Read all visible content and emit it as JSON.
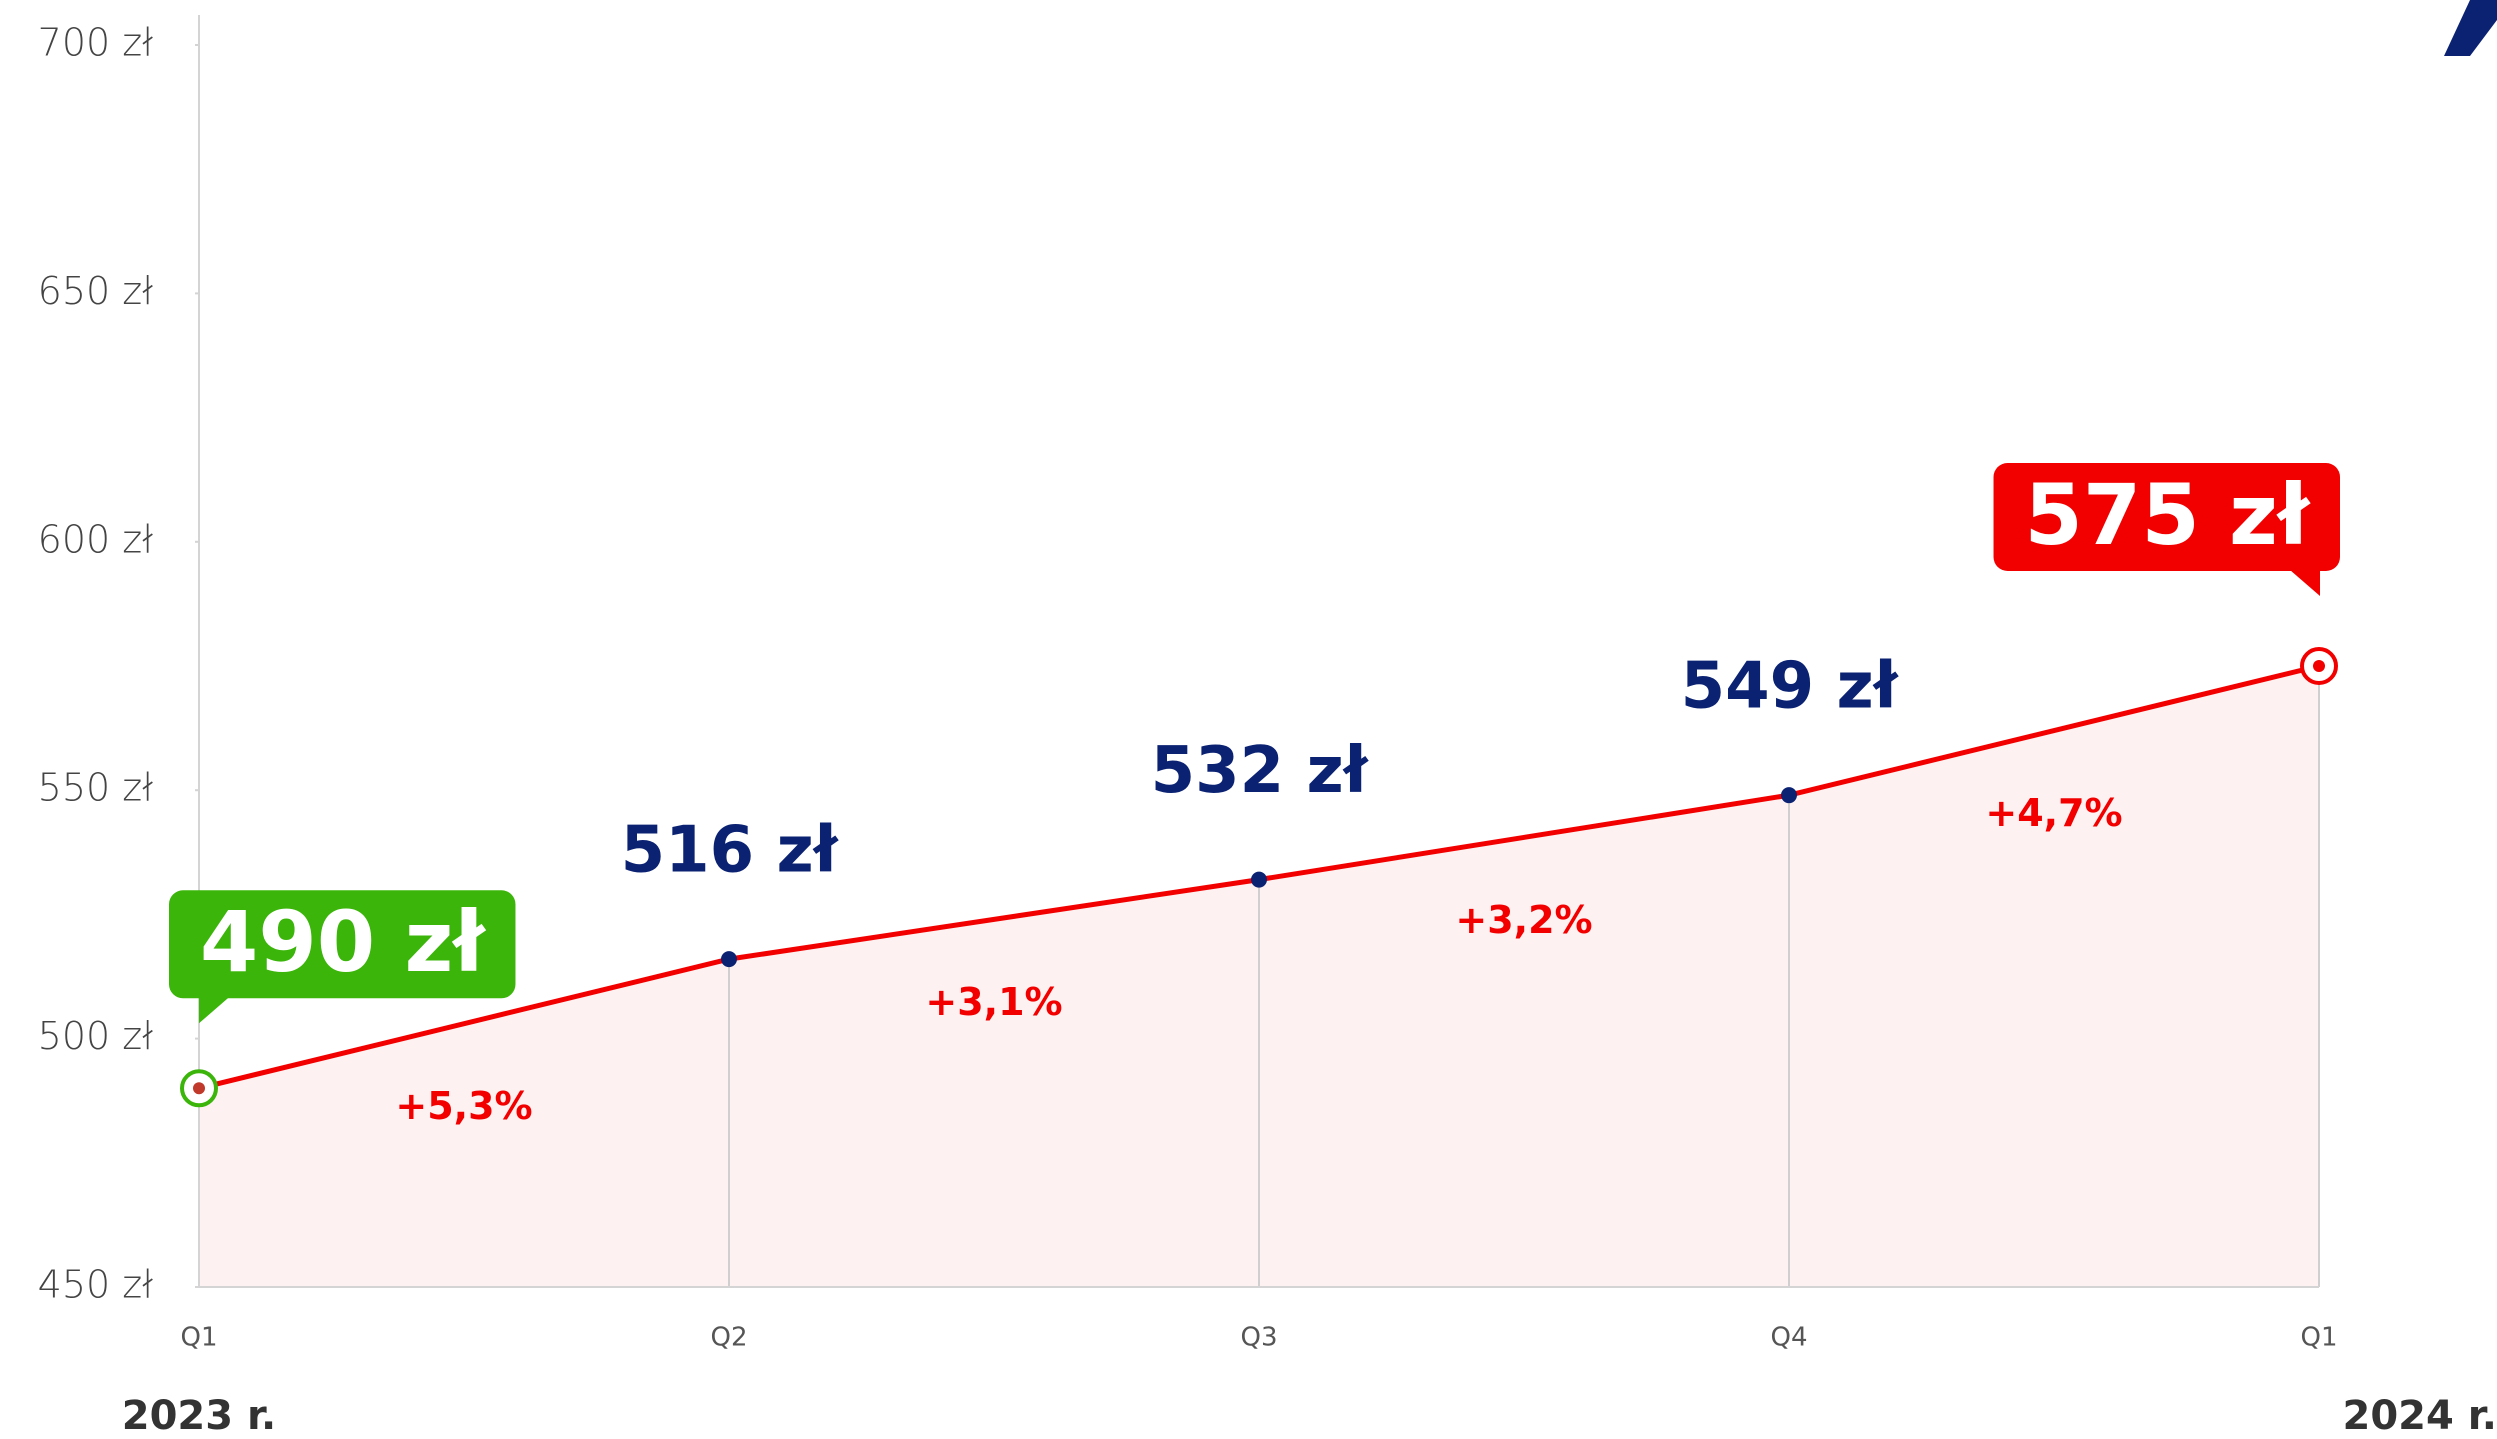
{
  "chart_data": {
    "type": "line",
    "categories": [
      "Q1",
      "Q2",
      "Q3",
      "Q4",
      "Q1"
    ],
    "period_labels": [
      "2023 r.",
      "2024 r."
    ],
    "values": [
      490,
      516,
      532,
      549,
      575
    ],
    "value_labels": [
      "490 zł",
      "516 zł",
      "532 zł",
      "549 zł",
      "575 zł"
    ],
    "change_labels": [
      "+5,3%",
      "+3,1%",
      "+3,2%",
      "+4,7%"
    ],
    "color": "#f20000",
    "area_color": "#fdf1f1",
    "marker_color": "#0b2273",
    "start_color": "#3bb50a",
    "end_color": "#f20000",
    "ylim": [
      450,
      700
    ],
    "yticks": [
      {
        "value": 450,
        "label": "450 zł"
      },
      {
        "value": 500,
        "label": "500 zł"
      },
      {
        "value": 550,
        "label": "550 zł"
      },
      {
        "value": 600,
        "label": "600 zł"
      },
      {
        "value": 650,
        "label": "650 zł"
      },
      {
        "value": 700,
        "label": "700 zł"
      }
    ]
  }
}
